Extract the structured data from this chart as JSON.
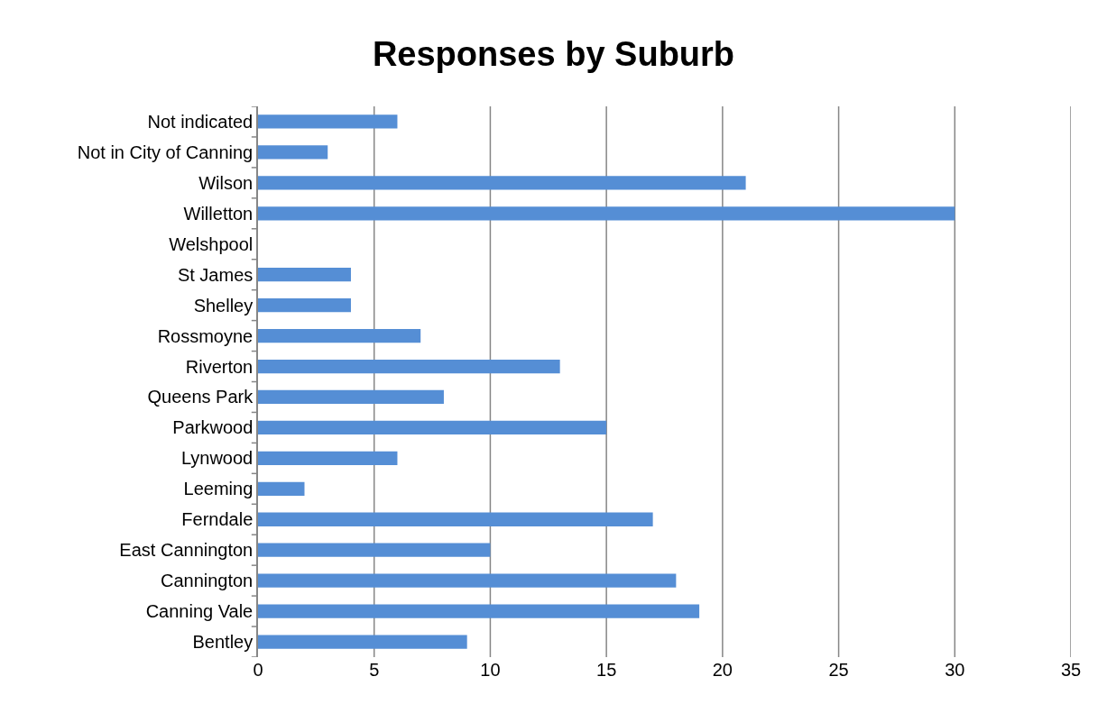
{
  "chart_data": {
    "type": "bar",
    "orientation": "horizontal",
    "title": "Responses by Suburb",
    "categories": [
      "Not indicated",
      "Not in City of Canning",
      "Wilson",
      "Willetton",
      "Welshpool",
      "St James",
      "Shelley",
      "Rossmoyne",
      "Riverton",
      "Queens Park",
      "Parkwood",
      "Lynwood",
      "Leeming",
      "Ferndale",
      "East Cannington",
      "Cannington",
      "Canning Vale",
      "Bentley"
    ],
    "values": [
      6,
      3,
      21,
      30,
      0,
      4,
      4,
      7,
      13,
      8,
      15,
      6,
      2,
      17,
      10,
      18,
      19,
      9
    ],
    "color": "#558ed5",
    "xlim": [
      0,
      35
    ],
    "xticks": [
      0,
      5,
      10,
      15,
      20,
      25,
      30,
      35
    ],
    "grid": "x"
  }
}
